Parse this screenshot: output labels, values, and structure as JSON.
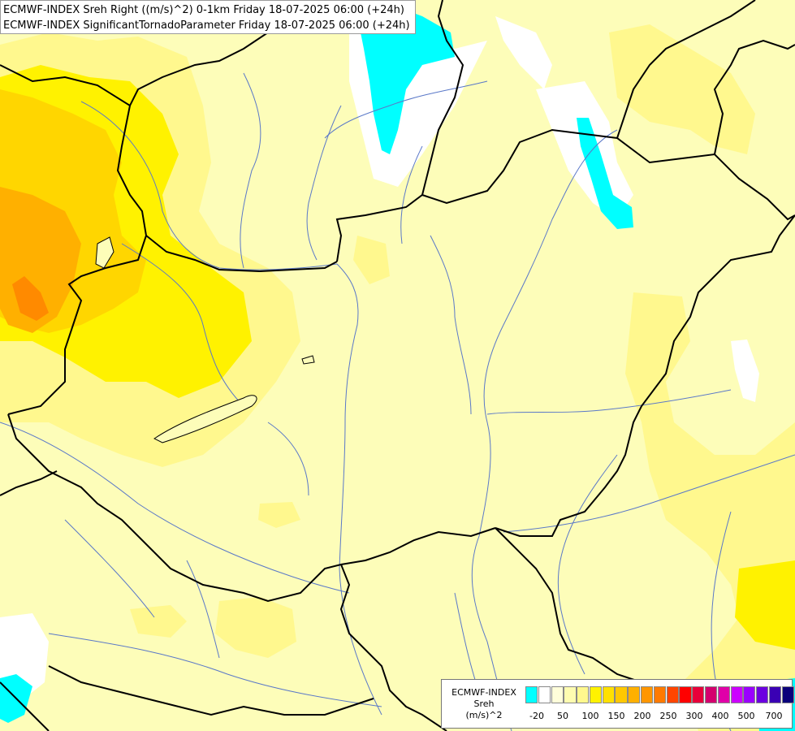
{
  "title": {
    "line1": "ECMWF-INDEX Sreh Right ((m/s)^2) 0-1km Friday 18-07-2025 06:00 (+24h)",
    "line2": "ECMWF-INDEX SignificantTornadoParameter Friday 18-07-2025 06:00 (+24h)"
  },
  "legend": {
    "label_line1": "ECMWF-INDEX",
    "label_line2": "Sreh",
    "label_line3": "(m/s)^2",
    "colors": [
      "#00ffff",
      "#ffffff",
      "#fffeda",
      "#fefcb0",
      "#fff88e",
      "#fff200",
      "#ffe000",
      "#ffc800",
      "#ffb000",
      "#ff9600",
      "#ff7a00",
      "#ff4500",
      "#ff0000",
      "#e8003a",
      "#d4006e",
      "#e000a8",
      "#cc00ff",
      "#9a00ff",
      "#6b00e0",
      "#3a00b4",
      "#0a007a"
    ],
    "ticks": [
      "-20",
      "50",
      "100",
      "150",
      "200",
      "250",
      "300",
      "400",
      "500",
      "700"
    ]
  },
  "colors": {
    "base_fill": "#fdfdb9",
    "light_yellow": "#fff88e",
    "yellow": "#fff200",
    "gold": "#ffd600",
    "orange": "#ffa500",
    "dark_orange": "#ff8a00",
    "white": "#ffffff",
    "cyan": "#00ffff",
    "border": "#000000",
    "river": "#5a78c8"
  }
}
